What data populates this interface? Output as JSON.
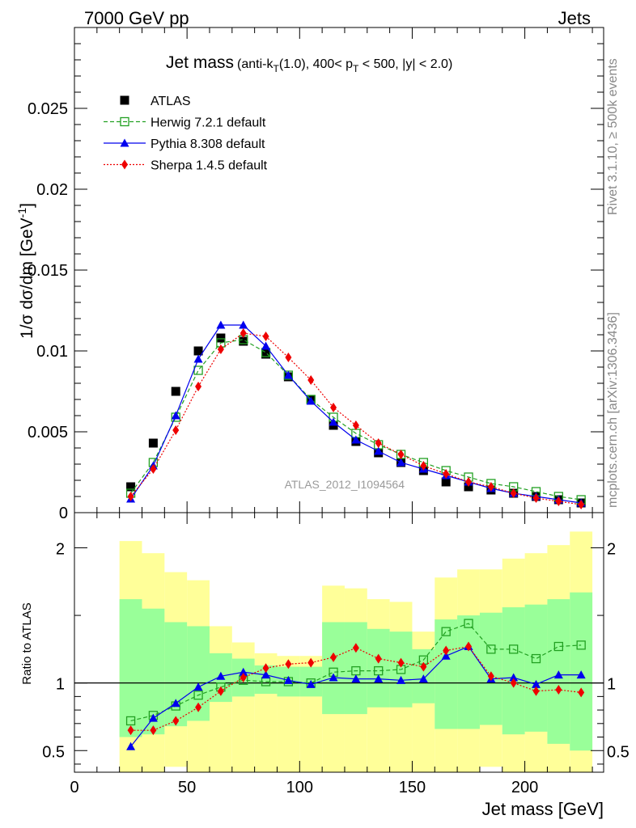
{
  "header": {
    "left": "7000 GeV pp",
    "right": "Jets"
  },
  "side_labels": {
    "rivet": "Rivet 3.1.10, ≥ 500k events",
    "mcplots": "mcplots.cern.ch [arXiv:1306.3436]"
  },
  "chart_data": [
    {
      "type": "line",
      "panel": "main",
      "title_main": "Jet mass",
      "title_sub": "(anti-k",
      "title_sub_T": "T",
      "title_sub2": "(1.0), 400< p",
      "title_sub_T2": "T",
      "title_sub3": " < 500, |y| < 2.0)",
      "watermark": "ATLAS_2012_I1094564",
      "ylabel": "1/σ dσ/dm [GeV",
      "ylabel_sup": "-1",
      "ylabel_close": "]",
      "ylim": [
        0,
        0.03
      ],
      "xlim": [
        0,
        235
      ],
      "ytick_labels": [
        "0",
        "0.005",
        "0.01",
        "0.015",
        "0.02",
        "0.025"
      ],
      "ytick_values": [
        0,
        0.005,
        0.01,
        0.015,
        0.02,
        0.025
      ],
      "x": [
        25,
        35,
        45,
        55,
        65,
        75,
        85,
        95,
        105,
        115,
        125,
        135,
        145,
        155,
        165,
        175,
        185,
        195,
        205,
        215,
        225
      ],
      "series": [
        {
          "name": "ATLAS",
          "style": "data",
          "color": "#000000",
          "values": [
            0.0016,
            0.0043,
            0.0075,
            0.01,
            0.0108,
            0.0106,
            0.0098,
            0.0084,
            0.007,
            0.0054,
            0.0044,
            0.0037,
            0.0031,
            0.0026,
            0.0019,
            0.0016,
            0.0014,
            0.0012,
            0.001,
            0.0008,
            0.0006
          ]
        },
        {
          "name": "Herwig 7.2.1 default",
          "style": "dash-opensquare",
          "color": "#22a022",
          "values": [
            0.0012,
            0.0031,
            0.0059,
            0.0088,
            0.0105,
            0.0107,
            0.0099,
            0.0085,
            0.007,
            0.0059,
            0.0049,
            0.0042,
            0.0036,
            0.0031,
            0.0026,
            0.0022,
            0.0018,
            0.0016,
            0.0013,
            0.001,
            0.0008
          ]
        },
        {
          "name": "Pythia 8.308 default",
          "style": "solid-triangle",
          "color": "#0000ee",
          "values": [
            0.00085,
            0.0029,
            0.006,
            0.0095,
            0.0116,
            0.0116,
            0.0103,
            0.0085,
            0.0069,
            0.0056,
            0.0045,
            0.0038,
            0.0031,
            0.0027,
            0.0023,
            0.0019,
            0.0015,
            0.0012,
            0.001,
            0.0008,
            0.0006
          ]
        },
        {
          "name": "Sherpa 1.4.5 default",
          "style": "dot-diamond",
          "color": "#ee0000",
          "values": [
            0.001,
            0.0027,
            0.0051,
            0.0078,
            0.0101,
            0.0111,
            0.0109,
            0.0096,
            0.0082,
            0.0065,
            0.0054,
            0.0043,
            0.0036,
            0.0029,
            0.0024,
            0.0019,
            0.0016,
            0.0012,
            0.0009,
            0.0007,
            0.0005
          ]
        }
      ]
    },
    {
      "type": "line",
      "panel": "ratio",
      "ylabel": "Ratio to ATLAS",
      "xlabel": "Jet mass [GeV]",
      "ylim": [
        0.34,
        2.26
      ],
      "xlim": [
        0,
        235
      ],
      "ytick_labels": [
        "0.5",
        "1",
        "2"
      ],
      "ytick_values": [
        0.5,
        1,
        2
      ],
      "xtick_labels": [
        "0",
        "50",
        "100",
        "150",
        "200"
      ],
      "xtick_values": [
        0,
        50,
        100,
        150,
        200
      ],
      "reference_line": 1,
      "band_edges": [
        20,
        30,
        40,
        50,
        60,
        70,
        80,
        90,
        100,
        110,
        120,
        130,
        140,
        150,
        160,
        170,
        180,
        190,
        200,
        210,
        220,
        230
      ],
      "yellow_band": {
        "color": "#ffff99",
        "low": [
          0.34,
          0.34,
          0.38,
          0.34,
          0.34,
          0.34,
          0.34,
          0.34,
          0.34,
          0.34,
          0.34,
          0.34,
          0.34,
          0.34,
          0.34,
          0.34,
          0.38,
          0.34,
          0.34,
          0.34,
          0.34
        ],
        "high": [
          2.05,
          1.96,
          1.82,
          1.76,
          1.42,
          1.3,
          1.22,
          1.2,
          1.2,
          1.72,
          1.7,
          1.62,
          1.6,
          1.38,
          1.78,
          1.84,
          1.84,
          1.92,
          1.96,
          2.02,
          2.12
        ]
      },
      "green_band": {
        "color": "#99ff99",
        "low": [
          0.6,
          0.62,
          0.68,
          0.72,
          0.86,
          0.9,
          0.92,
          0.9,
          0.9,
          0.77,
          0.77,
          0.82,
          0.82,
          0.85,
          0.66,
          0.66,
          0.69,
          0.62,
          0.64,
          0.55,
          0.5
        ],
        "high": [
          1.62,
          1.55,
          1.45,
          1.42,
          1.22,
          1.18,
          1.13,
          1.12,
          1.12,
          1.45,
          1.45,
          1.4,
          1.38,
          1.25,
          1.47,
          1.5,
          1.52,
          1.56,
          1.58,
          1.62,
          1.67
        ]
      },
      "x": [
        25,
        35,
        45,
        55,
        65,
        75,
        85,
        95,
        105,
        115,
        125,
        135,
        145,
        155,
        165,
        175,
        185,
        195,
        205,
        215,
        225
      ],
      "series": [
        {
          "name": "Herwig 7.2.1 default",
          "style": "dash-opensquare",
          "color": "#22a022",
          "values": [
            0.72,
            0.76,
            0.83,
            0.91,
            0.97,
            1.02,
            1.01,
            1.01,
            1.0,
            1.08,
            1.09,
            1.09,
            1.1,
            1.17,
            1.38,
            1.44,
            1.25,
            1.25,
            1.18,
            1.27,
            1.28
          ]
        },
        {
          "name": "Pythia 8.308 default",
          "style": "solid-triangle",
          "color": "#0000ee",
          "values": [
            0.53,
            0.74,
            0.85,
            0.97,
            1.05,
            1.08,
            1.06,
            1.02,
            0.99,
            1.04,
            1.03,
            1.03,
            1.02,
            1.03,
            1.2,
            1.27,
            1.03,
            1.04,
            0.99,
            1.06,
            1.06
          ]
        },
        {
          "name": "Sherpa 1.4.5 default",
          "style": "dot-diamond",
          "color": "#ee0000",
          "values": [
            0.65,
            0.65,
            0.72,
            0.82,
            0.94,
            1.04,
            1.11,
            1.14,
            1.15,
            1.19,
            1.26,
            1.18,
            1.15,
            1.12,
            1.24,
            1.27,
            1.05,
            1.0,
            0.94,
            0.95,
            0.93
          ]
        }
      ]
    }
  ]
}
